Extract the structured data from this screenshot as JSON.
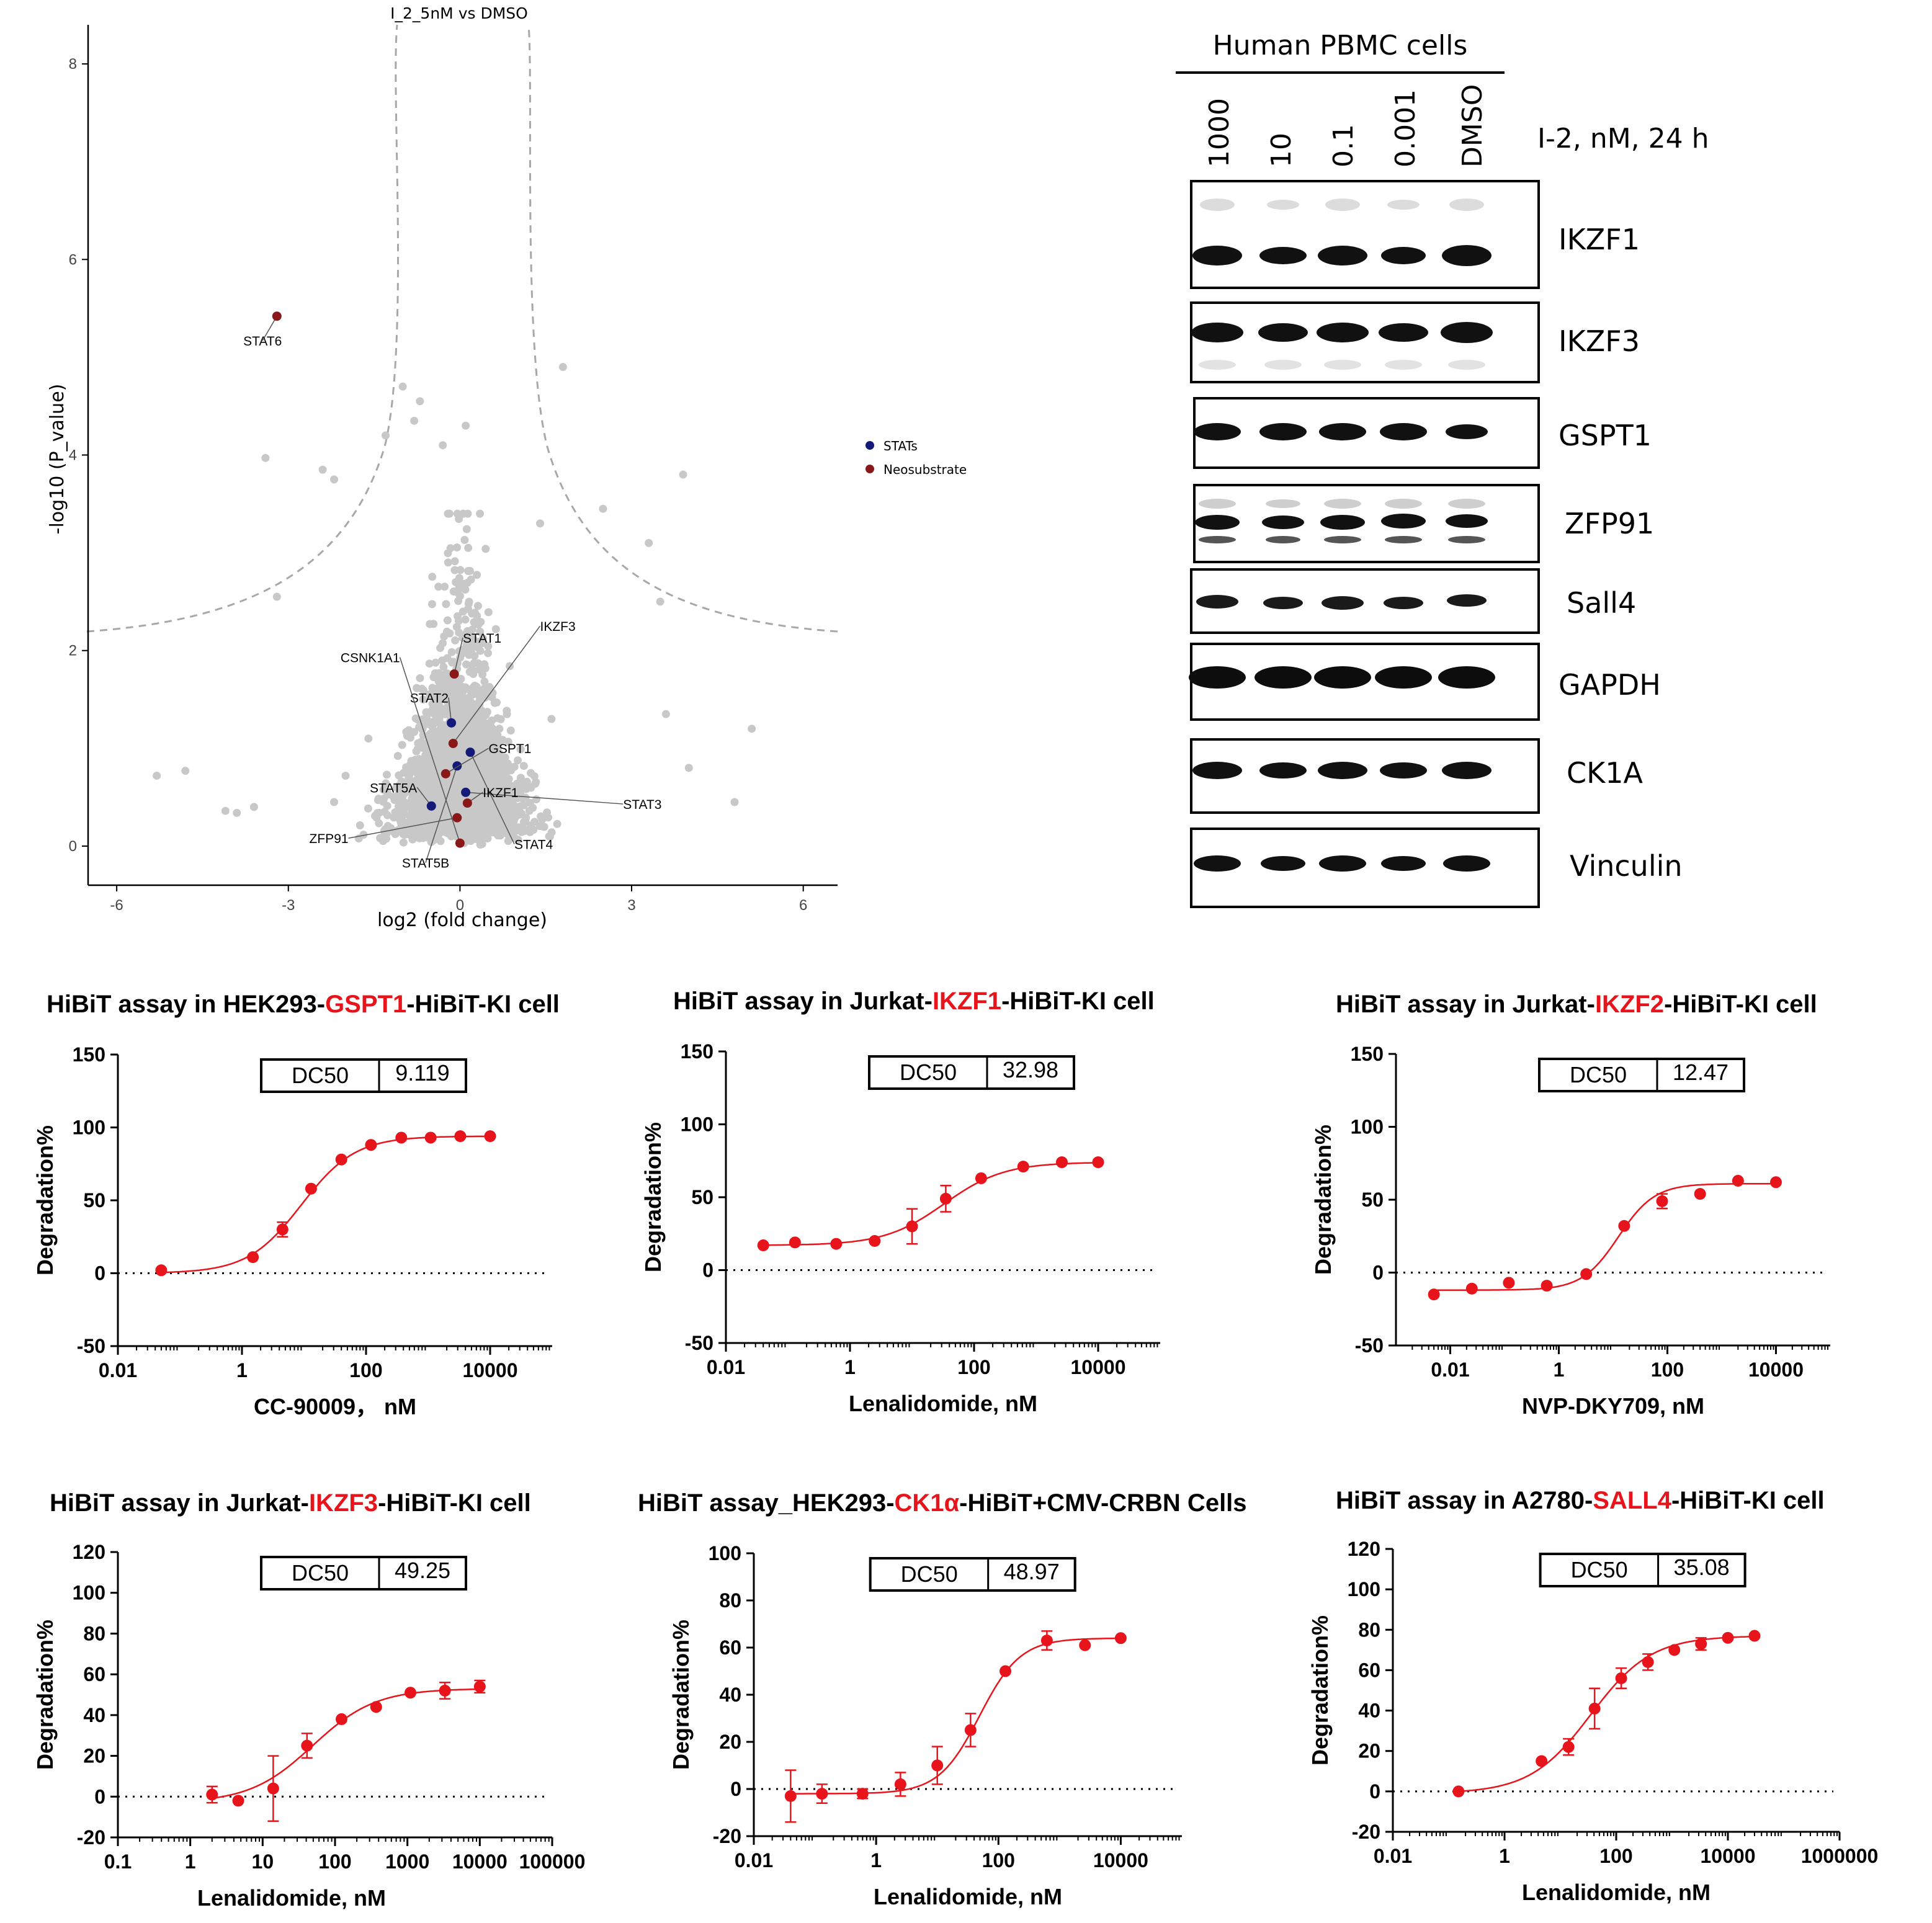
{
  "colors": {
    "red": "#e8141c",
    "navy": "#141a78",
    "maroon": "#8b1818",
    "grey": "#c8c8c8",
    "dashed": "#a8a8a8",
    "axis": "#000000"
  },
  "volcano": {
    "title": "I_2_5nM vs DMSO",
    "xlabel": "log2 (fold change)",
    "ylabel": "-log10 (P_value)",
    "xlim": [
      -6.5,
      6.6
    ],
    "ylim": [
      -0.4,
      8.4
    ],
    "xticks": [
      -6,
      -3,
      0,
      3,
      6
    ],
    "xtick_labels": [
      "-6",
      "-3",
      "0",
      "3",
      "6"
    ],
    "yticks": [
      0,
      2,
      4,
      6,
      8
    ],
    "ytick_labels": [
      "0",
      "2",
      "4",
      "6",
      "8"
    ],
    "legend": [
      {
        "label": "STATs",
        "color": "#141a78"
      },
      {
        "label": "Neosubstrate",
        "color": "#8b1818"
      }
    ]
  },
  "western": {
    "header": "Human PBMC cells",
    "condition": "I-2, nM, 24 h",
    "lanes": [
      "1000",
      "10",
      "0.1",
      "0.001",
      "DMSO"
    ],
    "proteins": [
      "IKZF1",
      "IKZF3",
      "GSPT1",
      "ZFP91",
      "Sall4",
      "GAPDH",
      "CK1A",
      "Vinculin"
    ]
  },
  "chart_data": [
    {
      "type": "scatter",
      "title": "I_2_5nM vs DMSO",
      "xlabel": "log2 (fold change)",
      "ylabel": "-log10 (P_value)",
      "xlim": [
        -6.5,
        6.6
      ],
      "ylim": [
        -0.4,
        8.4
      ],
      "series": [
        {
          "name": "STATs",
          "color": "#141a78",
          "points": [
            {
              "label": "STAT2",
              "x": -0.15,
              "y": 1.26
            },
            {
              "label": "STAT3",
              "x": 0.1,
              "y": 0.55
            },
            {
              "label": "STAT5A",
              "x": -0.5,
              "y": 0.41
            },
            {
              "label": "STAT4",
              "x": 0.18,
              "y": 0.96
            },
            {
              "label": "STAT5B",
              "x": -0.05,
              "y": 0.82
            }
          ]
        },
        {
          "name": "Neosubstrate",
          "color": "#8b1818",
          "points": [
            {
              "label": "STAT6",
              "x": -3.2,
              "y": 5.42
            },
            {
              "label": "STAT1",
              "x": -0.1,
              "y": 1.76
            },
            {
              "label": "IKZF3",
              "x": -0.12,
              "y": 1.05
            },
            {
              "label": "GSPT1",
              "x": -0.25,
              "y": 0.74
            },
            {
              "label": "IKZF1",
              "x": 0.13,
              "y": 0.44
            },
            {
              "label": "ZFP91",
              "x": -0.05,
              "y": 0.29
            },
            {
              "label": "CSNK1A1",
              "x": 0.0,
              "y": 0.03
            }
          ]
        }
      ],
      "background_points": [
        [
          -5.3,
          0.72
        ],
        [
          -4.8,
          0.77
        ],
        [
          -4.1,
          0.36
        ],
        [
          -3.9,
          0.34
        ],
        [
          -3.6,
          0.4
        ],
        [
          -3.4,
          3.97
        ],
        [
          -3.2,
          2.55
        ],
        [
          -2.4,
          3.85
        ],
        [
          -2.2,
          3.75
        ],
        [
          -2.0,
          0.72
        ],
        [
          -1.3,
          4.2
        ],
        [
          -1.0,
          4.7
        ],
        [
          -0.8,
          4.35
        ],
        [
          -0.7,
          4.55
        ],
        [
          0.1,
          4.3
        ],
        [
          -0.3,
          4.1
        ],
        [
          1.4,
          3.3
        ],
        [
          1.8,
          4.9
        ],
        [
          2.5,
          3.45
        ],
        [
          3.3,
          3.1
        ],
        [
          3.9,
          3.8
        ],
        [
          3.5,
          2.5
        ],
        [
          4.0,
          0.8
        ],
        [
          4.8,
          0.45
        ],
        [
          5.1,
          1.2
        ],
        [
          3.6,
          1.35
        ],
        [
          1.6,
          1.3
        ],
        [
          -1.6,
          1.1
        ],
        [
          -2.2,
          0.45
        ],
        [
          1.2,
          0.6
        ]
      ],
      "legend": [
        {
          "label": "STATs"
        },
        {
          "label": "Neosubstrate"
        }
      ]
    },
    {
      "type": "line",
      "title_parts": [
        "HiBiT assay in HEK293-",
        "GSPT1",
        "-HiBiT-KI cell"
      ],
      "xlabel": "CC-90009， nM",
      "ylabel": "Degradation%",
      "dc50_label": "DC50",
      "dc50": "9.119",
      "xscale": "log",
      "xlim": [
        0.01,
        100000
      ],
      "ylim": [
        -50,
        150
      ],
      "xticks": [
        0.01,
        1,
        100,
        10000
      ],
      "xtick_labels": [
        "0.01",
        "1",
        "100",
        "10000"
      ],
      "yticks": [
        -50,
        0,
        50,
        100,
        150
      ],
      "ytick_labels": [
        "-50",
        "0",
        "50",
        "100",
        "150"
      ],
      "fit": {
        "bottom": 0,
        "top": 94,
        "ec50": 9.1,
        "hill": 1.0
      },
      "points": [
        {
          "x": 0.05,
          "y": 2,
          "err": 0
        },
        {
          "x": 1.5,
          "y": 11,
          "err": 0
        },
        {
          "x": 4.5,
          "y": 30,
          "err": 5
        },
        {
          "x": 13,
          "y": 58,
          "err": 0
        },
        {
          "x": 40,
          "y": 78,
          "err": 0
        },
        {
          "x": 120,
          "y": 88,
          "err": 0
        },
        {
          "x": 370,
          "y": 93,
          "err": 0
        },
        {
          "x": 1100,
          "y": 93,
          "err": 0
        },
        {
          "x": 3300,
          "y": 94,
          "err": 0
        },
        {
          "x": 10000,
          "y": 94,
          "err": 0
        }
      ]
    },
    {
      "type": "line",
      "title_parts": [
        "HiBiT assay in Jurkat-",
        "IKZF1",
        "-HiBiT-KI cell"
      ],
      "xlabel": "Lenalidomide, nM",
      "ylabel": "Degradation%",
      "dc50_label": "DC50",
      "dc50": "32.98",
      "xscale": "log",
      "xlim": [
        0.01,
        100000
      ],
      "ylim": [
        -50,
        150
      ],
      "xticks": [
        0.01,
        1,
        100,
        10000
      ],
      "xtick_labels": [
        "0.01",
        "1",
        "100",
        "10000"
      ],
      "yticks": [
        -50,
        0,
        50,
        100,
        150
      ],
      "ytick_labels": [
        "-50",
        "0",
        "50",
        "100",
        "150"
      ],
      "fit": {
        "bottom": 17,
        "top": 74,
        "ec50": 33,
        "hill": 0.9
      },
      "points": [
        {
          "x": 0.04,
          "y": 17,
          "err": 0
        },
        {
          "x": 0.13,
          "y": 19,
          "err": 0
        },
        {
          "x": 0.6,
          "y": 18,
          "err": 0
        },
        {
          "x": 2.5,
          "y": 20,
          "err": 0
        },
        {
          "x": 10,
          "y": 30,
          "err": 12
        },
        {
          "x": 35,
          "y": 49,
          "err": 9
        },
        {
          "x": 130,
          "y": 63,
          "err": 0
        },
        {
          "x": 620,
          "y": 71,
          "err": 0
        },
        {
          "x": 2600,
          "y": 74,
          "err": 0
        },
        {
          "x": 10000,
          "y": 74,
          "err": 0
        }
      ]
    },
    {
      "type": "line",
      "title_parts": [
        "HiBiT assay in Jurkat-",
        "IKZF2",
        "-HiBiT-KI cell"
      ],
      "xlabel": "NVP-DKY709, nM",
      "ylabel": "Degradation%",
      "dc50_label": "DC50",
      "dc50": "12.47",
      "xscale": "log",
      "xlim": [
        0.001,
        100000
      ],
      "ylim": [
        -50,
        150
      ],
      "xticks": [
        0.01,
        1,
        100,
        10000
      ],
      "xtick_labels": [
        "0.01",
        "1",
        "100",
        "10000"
      ],
      "yticks": [
        -50,
        0,
        50,
        100,
        150
      ],
      "ytick_labels": [
        "-50",
        "0",
        "50",
        "100",
        "150"
      ],
      "fit": {
        "bottom": -12,
        "top": 61,
        "ec50": 12.5,
        "hill": 1.3
      },
      "points": [
        {
          "x": 0.005,
          "y": -15,
          "err": 0
        },
        {
          "x": 0.025,
          "y": -11,
          "err": 0
        },
        {
          "x": 0.12,
          "y": -7,
          "err": 0
        },
        {
          "x": 0.6,
          "y": -9,
          "err": 0
        },
        {
          "x": 3.2,
          "y": -1,
          "err": 0
        },
        {
          "x": 16,
          "y": 32,
          "err": 0
        },
        {
          "x": 80,
          "y": 49,
          "err": 5
        },
        {
          "x": 400,
          "y": 54,
          "err": 0
        },
        {
          "x": 2000,
          "y": 63,
          "err": 0
        },
        {
          "x": 10000,
          "y": 62,
          "err": 0
        }
      ]
    },
    {
      "type": "line",
      "title_parts": [
        "HiBiT assay in Jurkat-",
        "IKZF3",
        "-HiBiT-KI cell"
      ],
      "xlabel": "Lenalidomide, nM",
      "ylabel": "Degradation%",
      "dc50_label": "DC50",
      "dc50": "49.25",
      "xscale": "log",
      "xlim": [
        0.1,
        100000
      ],
      "ylim": [
        -20,
        120
      ],
      "xticks": [
        0.1,
        1,
        10,
        100,
        1000,
        10000,
        100000
      ],
      "xtick_labels": [
        "0.1",
        "1",
        "10",
        "100",
        "1000",
        "10000",
        "100000"
      ],
      "yticks": [
        -20,
        0,
        20,
        40,
        60,
        80,
        100,
        120
      ],
      "ytick_labels": [
        "-20",
        "0",
        "20",
        "40",
        "60",
        "80",
        "100",
        "120"
      ],
      "fit": {
        "bottom": -3,
        "top": 53,
        "ec50": 49,
        "hill": 1.0
      },
      "points": [
        {
          "x": 2,
          "y": 1,
          "err": 4
        },
        {
          "x": 4.6,
          "y": -2,
          "err": 0
        },
        {
          "x": 14,
          "y": 4,
          "err": 16
        },
        {
          "x": 41,
          "y": 25,
          "err": 6
        },
        {
          "x": 123,
          "y": 38,
          "err": 0
        },
        {
          "x": 370,
          "y": 44,
          "err": 0
        },
        {
          "x": 1100,
          "y": 51,
          "err": 0
        },
        {
          "x": 3300,
          "y": 52,
          "err": 4
        },
        {
          "x": 10000,
          "y": 54,
          "err": 3
        }
      ]
    },
    {
      "type": "line",
      "title_parts": [
        "HiBiT assay_HEK293-",
        "CK1α",
        "-HiBiT+CMV-CRBN Cells"
      ],
      "xlabel": "Lenalidomide, nM",
      "ylabel": "Degradation%",
      "dc50_label": "DC50",
      "dc50": "48.97",
      "xscale": "log",
      "xlim": [
        0.01,
        100000
      ],
      "ylim": [
        -20,
        100
      ],
      "xticks": [
        0.01,
        1,
        100,
        10000
      ],
      "xtick_labels": [
        "0.01",
        "1",
        "100",
        "10000"
      ],
      "yticks": [
        -20,
        0,
        20,
        40,
        60,
        80,
        100
      ],
      "ytick_labels": [
        "-20",
        "0",
        "20",
        "40",
        "60",
        "80",
        "100"
      ],
      "fit": {
        "bottom": -2,
        "top": 64,
        "ec50": 49,
        "hill": 1.3
      },
      "points": [
        {
          "x": 0.04,
          "y": -3,
          "err": 11
        },
        {
          "x": 0.13,
          "y": -2,
          "err": 4
        },
        {
          "x": 0.6,
          "y": -2,
          "err": 2
        },
        {
          "x": 2.5,
          "y": 2,
          "err": 5
        },
        {
          "x": 10,
          "y": 10,
          "err": 8
        },
        {
          "x": 35,
          "y": 25,
          "err": 7
        },
        {
          "x": 130,
          "y": 50,
          "err": 0
        },
        {
          "x": 620,
          "y": 63,
          "err": 4
        },
        {
          "x": 2600,
          "y": 61,
          "err": 0
        },
        {
          "x": 10000,
          "y": 64,
          "err": 0
        }
      ]
    },
    {
      "type": "line",
      "title_parts": [
        "HiBiT assay in A2780-",
        "SALL4",
        "-HiBiT-KI cell"
      ],
      "xlabel": "Lenalidomide, nM",
      "ylabel": "Degradation%",
      "dc50_label": "DC50",
      "dc50": "35.08",
      "xscale": "log",
      "xlim": [
        0.01,
        1000000
      ],
      "ylim": [
        -20,
        120
      ],
      "xticks": [
        0.01,
        1,
        100,
        10000,
        1000000
      ],
      "xtick_labels": [
        "0.01",
        "1",
        "100",
        "10000",
        "1000000"
      ],
      "yticks": [
        -20,
        0,
        20,
        40,
        60,
        80,
        100,
        120
      ],
      "ytick_labels": [
        "-20",
        "0",
        "20",
        "40",
        "60",
        "80",
        "100",
        "120"
      ],
      "fit": {
        "bottom": -1,
        "top": 77,
        "ec50": 35,
        "hill": 0.8
      },
      "points": [
        {
          "x": 0.15,
          "y": 0,
          "err": 0
        },
        {
          "x": 4.6,
          "y": 15,
          "err": 0
        },
        {
          "x": 14,
          "y": 22,
          "err": 4
        },
        {
          "x": 41,
          "y": 41,
          "err": 10
        },
        {
          "x": 123,
          "y": 56,
          "err": 5
        },
        {
          "x": 370,
          "y": 64,
          "err": 4
        },
        {
          "x": 1100,
          "y": 70,
          "err": 0
        },
        {
          "x": 3300,
          "y": 73,
          "err": 3
        },
        {
          "x": 10000,
          "y": 76,
          "err": 0
        },
        {
          "x": 30000,
          "y": 77,
          "err": 0
        }
      ]
    }
  ]
}
